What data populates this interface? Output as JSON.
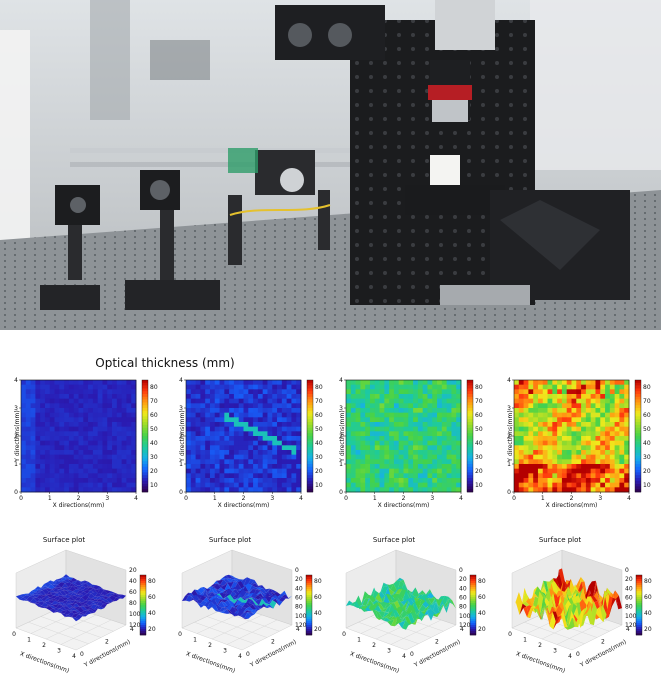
{
  "figure_title": "Optical thickness (mm)",
  "colormap": [
    "#30004a",
    "#2a1bb3",
    "#1565ff",
    "#16b0e8",
    "#1ecb9c",
    "#45d24a",
    "#9bdc2a",
    "#f0ea1c",
    "#ff9b12",
    "#ff3a0e",
    "#b40000"
  ],
  "photo": {
    "description_icon": "optical-setup-photo"
  },
  "chart_data": [
    {
      "type": "heatmap",
      "title": "",
      "xlabel": "X directions(mm)",
      "ylabel": "Y directions(mm)",
      "xlim": [
        0,
        4
      ],
      "ylim": [
        0,
        4
      ],
      "x_ticks": [
        "0",
        "1",
        "2",
        "3",
        "4"
      ],
      "y_ticks": [
        "0",
        "1",
        "2",
        "3",
        "4"
      ],
      "colorbar_range": [
        5,
        85
      ],
      "colorbar_ticks": [
        "80",
        "70",
        "60",
        "50",
        "40",
        "30",
        "20",
        "10"
      ],
      "typical_value": 14,
      "dominant_color": "#6a1aa8"
    },
    {
      "type": "heatmap",
      "title": "",
      "xlabel": "X directions(mm)",
      "ylabel": "Y directions(mm)",
      "xlim": [
        0,
        4
      ],
      "ylim": [
        0,
        4
      ],
      "x_ticks": [
        "0",
        "1",
        "2",
        "3",
        "4"
      ],
      "y_ticks": [
        "0",
        "1",
        "2",
        "3",
        "4"
      ],
      "colorbar_range": [
        5,
        85
      ],
      "colorbar_ticks": [
        "80",
        "70",
        "60",
        "50",
        "40",
        "30",
        "20",
        "10"
      ],
      "typical_value": 20,
      "dominant_color": "#2a3fcf"
    },
    {
      "type": "heatmap",
      "title": "",
      "xlabel": "X directions(mm)",
      "ylabel": "Y directions(mm)",
      "xlim": [
        0,
        4
      ],
      "ylim": [
        0,
        4
      ],
      "x_ticks": [
        "0",
        "1",
        "2",
        "3",
        "4"
      ],
      "y_ticks": [
        "0",
        "1",
        "2",
        "3",
        "4"
      ],
      "colorbar_range": [
        5,
        85
      ],
      "colorbar_ticks": [
        "80",
        "70",
        "60",
        "50",
        "40",
        "30",
        "20",
        "10"
      ],
      "typical_value": 40,
      "dominant_color": "#22b57a"
    },
    {
      "type": "heatmap",
      "title": "",
      "xlabel": "X directions(mm)",
      "ylabel": "Y directions(mm)",
      "xlim": [
        0,
        4
      ],
      "ylim": [
        0,
        4
      ],
      "x_ticks": [
        "0",
        "1",
        "2",
        "3",
        "4"
      ],
      "y_ticks": [
        "0",
        "1",
        "2",
        "3",
        "4"
      ],
      "colorbar_range": [
        5,
        85
      ],
      "colorbar_ticks": [
        "80",
        "70",
        "60",
        "50",
        "40",
        "30",
        "20",
        "10"
      ],
      "typical_value": 60,
      "dominant_color": "#8fd83a"
    },
    {
      "type": "surface",
      "title": "Surface plot",
      "xlabel": "X directions(mm)",
      "ylabel": "Y directions(mm)",
      "x_ticks": [
        "0",
        "1",
        "2",
        "3",
        "4"
      ],
      "y_ticks": [
        "0",
        "2",
        "4"
      ],
      "z_ticks": [
        "20",
        "40",
        "60",
        "80",
        "100",
        "120"
      ],
      "colorbar_ticks": [
        "80",
        "60",
        "40",
        "20"
      ],
      "dominant_color": "#6a1aa8"
    },
    {
      "type": "surface",
      "title": "Surface plot",
      "xlabel": "X directions(mm)",
      "ylabel": "Y directions(mm)",
      "x_ticks": [
        "0",
        "1",
        "2",
        "3",
        "4"
      ],
      "y_ticks": [
        "0",
        "2",
        "4"
      ],
      "z_ticks": [
        "0",
        "20",
        "40",
        "60",
        "80",
        "100",
        "120"
      ],
      "colorbar_ticks": [
        "80",
        "60",
        "40",
        "20"
      ],
      "dominant_color": "#2a3fcf"
    },
    {
      "type": "surface",
      "title": "Surface plot",
      "xlabel": "X directions(mm)",
      "ylabel": "Y directions(mm)",
      "x_ticks": [
        "0",
        "1",
        "2",
        "3",
        "4"
      ],
      "y_ticks": [
        "0",
        "2",
        "4"
      ],
      "z_ticks": [
        "0",
        "20",
        "40",
        "60",
        "80",
        "100",
        "120"
      ],
      "colorbar_ticks": [
        "80",
        "60",
        "40",
        "20"
      ],
      "dominant_color": "#22b57a"
    },
    {
      "type": "surface",
      "title": "Surface plot",
      "xlabel": "X directions(mm)",
      "ylabel": "Y directions(mm)",
      "x_ticks": [
        "0",
        "1",
        "2",
        "3",
        "4"
      ],
      "y_ticks": [
        "0",
        "2",
        "4"
      ],
      "z_ticks": [
        "0",
        "20",
        "40",
        "60",
        "80",
        "100",
        "120"
      ],
      "colorbar_ticks": [
        "80",
        "60",
        "40",
        "20"
      ],
      "dominant_color": "#8fd83a"
    }
  ]
}
